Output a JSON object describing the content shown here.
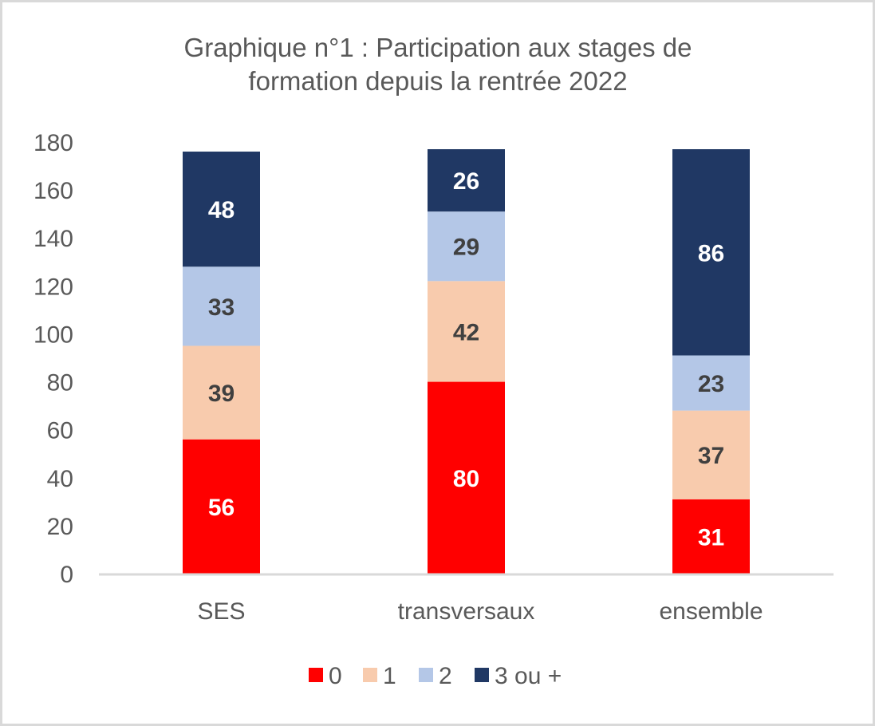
{
  "chart_data": {
    "type": "bar",
    "stacked": true,
    "title_lines": [
      "Graphique n°1 : Participation aux stages de",
      "formation depuis la rentrée 2022"
    ],
    "xlabel": "",
    "ylabel": "",
    "categories": [
      "SES",
      "transversaux",
      "ensemble"
    ],
    "ylim": [
      0,
      180
    ],
    "yticks": [
      "0",
      "20",
      "40",
      "60",
      "80",
      "100",
      "120",
      "140",
      "160",
      "180"
    ],
    "grid": false,
    "legend_position": "bottom",
    "series": [
      {
        "name": "0",
        "values": [
          56,
          80,
          31
        ],
        "color": "#ff0000",
        "label_color": "#ffffff"
      },
      {
        "name": "1",
        "values": [
          39,
          42,
          37
        ],
        "color": "#f8cbad",
        "label_color": "#404040"
      },
      {
        "name": "2",
        "values": [
          33,
          29,
          23
        ],
        "color": "#b4c7e7",
        "label_color": "#404040"
      },
      {
        "name": "3 ou +",
        "values": [
          48,
          26,
          86
        ],
        "color": "#203864",
        "label_color": "#ffffff"
      }
    ]
  }
}
